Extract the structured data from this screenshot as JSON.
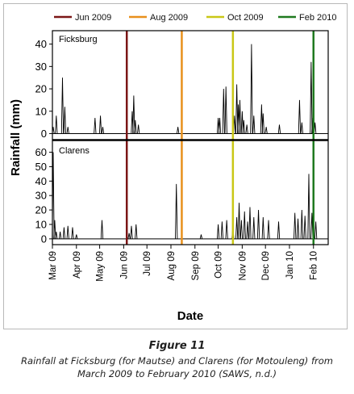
{
  "figure": {
    "title": "Figure 11",
    "caption_line1": "Rainfall at Ficksburg (for Mautse) and Clarens (for Motouleng) from",
    "caption_line2": "March 2009 to February 2010 (SAWS, n.d.)"
  },
  "chart_data": {
    "type": "line",
    "xlabel": "Date",
    "ylabel": "Rainfall (mm)",
    "x_range": [
      "2009-03-01",
      "2010-02-20"
    ],
    "x_ticks": [
      {
        "date": "2009-03-01",
        "label": "Mar 09"
      },
      {
        "date": "2009-04-01",
        "label": "Apr 09"
      },
      {
        "date": "2009-05-01",
        "label": "May 09"
      },
      {
        "date": "2009-06-01",
        "label": "Jun 09"
      },
      {
        "date": "2009-07-01",
        "label": "Jul 09"
      },
      {
        "date": "2009-08-01",
        "label": "Aug 09"
      },
      {
        "date": "2009-09-01",
        "label": "Sep 09"
      },
      {
        "date": "2009-10-01",
        "label": "Oct 09"
      },
      {
        "date": "2009-11-01",
        "label": "Nov 09"
      },
      {
        "date": "2009-12-01",
        "label": "Dec 09"
      },
      {
        "date": "2010-01-01",
        "label": "Jan 10"
      },
      {
        "date": "2010-02-01",
        "label": "Feb 10"
      }
    ],
    "legend": [
      {
        "label": "Jun 2009",
        "color": "#7b1616",
        "date": "2009-06-05"
      },
      {
        "label": "Aug 2009",
        "color": "#e8901c",
        "date": "2009-08-15"
      },
      {
        "label": "Oct 2009",
        "color": "#c9c716",
        "date": "2009-10-20"
      },
      {
        "label": "Feb 2010",
        "color": "#1f7a1f",
        "date": "2010-02-01"
      }
    ],
    "legend_placement": "top",
    "grid": false,
    "panels": [
      {
        "name": "Ficksburg",
        "ylim": [
          -2,
          46
        ],
        "yticks": [
          0,
          10,
          20,
          30,
          40
        ],
        "points": [
          [
            "2009-03-02",
            3
          ],
          [
            "2009-03-06",
            8
          ],
          [
            "2009-03-14",
            25
          ],
          [
            "2009-03-17",
            12
          ],
          [
            "2009-03-21",
            3
          ],
          [
            "2009-04-25",
            7
          ],
          [
            "2009-05-02",
            8
          ],
          [
            "2009-05-05",
            3
          ],
          [
            "2009-06-12",
            10
          ],
          [
            "2009-06-14",
            17
          ],
          [
            "2009-06-16",
            6
          ],
          [
            "2009-06-20",
            4
          ],
          [
            "2009-08-10",
            3
          ],
          [
            "2009-10-01",
            7
          ],
          [
            "2009-10-03",
            7
          ],
          [
            "2009-10-08",
            20
          ],
          [
            "2009-10-11",
            21
          ],
          [
            "2009-10-22",
            8
          ],
          [
            "2009-10-25",
            22
          ],
          [
            "2009-10-27",
            13
          ],
          [
            "2009-10-29",
            15
          ],
          [
            "2009-11-01",
            10
          ],
          [
            "2009-11-03",
            6
          ],
          [
            "2009-11-07",
            4
          ],
          [
            "2009-11-13",
            40
          ],
          [
            "2009-11-16",
            8
          ],
          [
            "2009-11-26",
            13
          ],
          [
            "2009-11-28",
            9
          ],
          [
            "2009-12-02",
            3
          ],
          [
            "2009-12-19",
            4
          ],
          [
            "2010-01-14",
            15
          ],
          [
            "2010-01-17",
            5
          ],
          [
            "2010-01-29",
            32
          ],
          [
            "2010-01-31",
            7
          ],
          [
            "2010-02-03",
            5
          ]
        ]
      },
      {
        "name": "Clarens",
        "ylim": [
          -4,
          67
        ],
        "yticks": [
          0,
          10,
          20,
          30,
          40,
          50,
          60
        ],
        "points": [
          [
            "2009-03-02",
            60
          ],
          [
            "2009-03-04",
            13
          ],
          [
            "2009-03-06",
            5
          ],
          [
            "2009-03-11",
            5
          ],
          [
            "2009-03-16",
            8
          ],
          [
            "2009-03-21",
            9
          ],
          [
            "2009-03-27",
            8
          ],
          [
            "2009-04-01",
            3
          ],
          [
            "2009-05-04",
            13
          ],
          [
            "2009-06-08",
            4
          ],
          [
            "2009-06-11",
            9
          ],
          [
            "2009-06-17",
            10
          ],
          [
            "2009-08-08",
            38
          ],
          [
            "2009-09-09",
            3
          ],
          [
            "2009-10-01",
            10
          ],
          [
            "2009-10-06",
            12
          ],
          [
            "2009-10-12",
            13
          ],
          [
            "2009-10-20",
            9
          ],
          [
            "2009-10-25",
            15
          ],
          [
            "2009-10-28",
            25
          ],
          [
            "2009-10-31",
            13
          ],
          [
            "2009-11-04",
            19
          ],
          [
            "2009-11-08",
            12
          ],
          [
            "2009-11-11",
            22
          ],
          [
            "2009-11-16",
            15
          ],
          [
            "2009-11-22",
            20
          ],
          [
            "2009-11-28",
            15
          ],
          [
            "2009-12-05",
            13
          ],
          [
            "2009-12-18",
            12
          ],
          [
            "2010-01-08",
            18
          ],
          [
            "2010-01-12",
            14
          ],
          [
            "2010-01-17",
            20
          ],
          [
            "2010-01-21",
            16
          ],
          [
            "2010-01-26",
            45
          ],
          [
            "2010-01-30",
            18
          ],
          [
            "2010-02-04",
            12
          ]
        ]
      }
    ]
  }
}
